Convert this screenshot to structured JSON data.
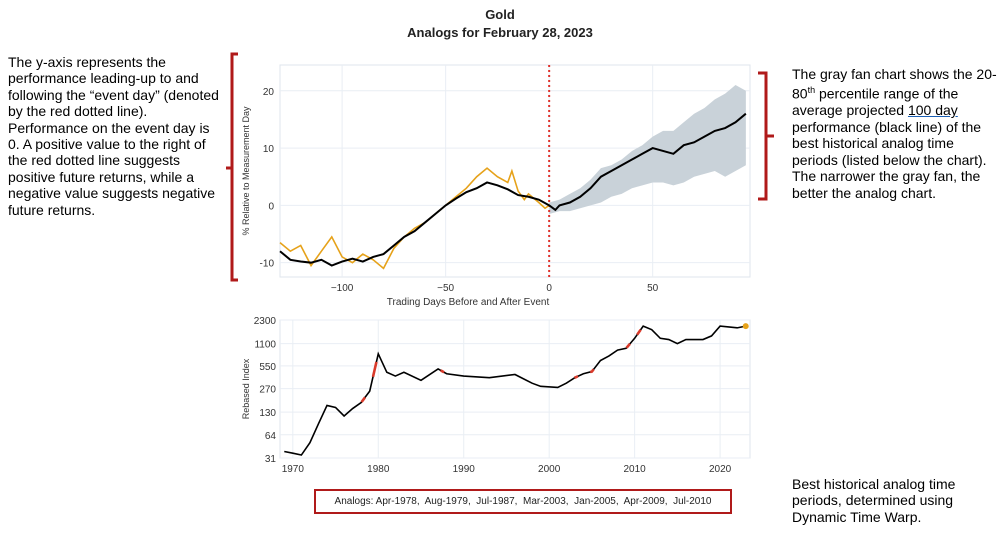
{
  "header": {
    "title": "Gold",
    "subtitle": "Analogs for February 28, 2023"
  },
  "notes": {
    "left": "The y-axis represents the performance leading-up to and following the “event day” (denoted by the red dotted line). Performance on the event day is 0. A positive value to the right of the red dotted line suggests positive future returns, while a negative value suggests negative future returns.",
    "right_part1": "The gray fan chart shows the 20-80",
    "right_sup": "th",
    "right_part2": " percentile range of the average projected ",
    "right_link": "100 day",
    "right_part3": " performance (black line) of the best historical analog time periods (listed below the chart). The narrower the gray fan, the better the analog chart.",
    "bottom_right": "Best historical analog time periods, determined using Dynamic Time Warp."
  },
  "analogs_label": "Analogs:",
  "analogs": [
    "Apr-1978",
    "Aug-1979",
    "Jul-1987",
    "Mar-2003",
    "Jan-2005",
    "Apr-2009",
    "Jul-2010"
  ],
  "colors": {
    "bracket": "#b01a1a",
    "event_line": "#e0302a",
    "fan": "#c9d2d9",
    "analog_line": "#000000",
    "gold_line": "#e6a21a",
    "highlight": "#d93a2b",
    "grid": "#e9eef4"
  },
  "chart_data": [
    {
      "type": "line",
      "ylabel": "% Relative to Measurement Day",
      "xlabel": "Trading Days Before and After Event",
      "xlim": [
        -130,
        97
      ],
      "ylim": [
        -12.5,
        24.5
      ],
      "xticks": [
        -100,
        -50,
        0,
        50
      ],
      "yticks": [
        -10,
        0,
        10,
        20
      ],
      "grid": true,
      "event_day": 0,
      "series": [
        {
          "role": "gold (actual)",
          "x": [
            -130,
            -125,
            -120,
            -115,
            -110,
            -105,
            -100,
            -95,
            -90,
            -85,
            -80,
            -75,
            -70,
            -65,
            -60,
            -55,
            -50,
            -45,
            -40,
            -35,
            -30,
            -25,
            -20,
            -18,
            -15,
            -12,
            -10,
            -5,
            -2,
            0
          ],
          "y": [
            -6.5,
            -8,
            -7,
            -10.5,
            -8,
            -5.5,
            -9,
            -10,
            -8.5,
            -9.5,
            -11,
            -7.5,
            -5.5,
            -4,
            -3,
            -1.5,
            0,
            1.5,
            3,
            5,
            6.5,
            5,
            4,
            6,
            2.5,
            1,
            2,
            0.5,
            -0.5,
            0
          ]
        },
        {
          "role": "analog average",
          "x": [
            -130,
            -125,
            -120,
            -115,
            -110,
            -105,
            -100,
            -95,
            -90,
            -85,
            -80,
            -75,
            -70,
            -65,
            -60,
            -55,
            -50,
            -45,
            -40,
            -35,
            -30,
            -25,
            -20,
            -15,
            -10,
            -5,
            0,
            3,
            5,
            10,
            15,
            20,
            25,
            30,
            35,
            40,
            45,
            50,
            55,
            60,
            65,
            70,
            75,
            80,
            85,
            90,
            95
          ],
          "y": [
            -8,
            -9.5,
            -9.8,
            -10,
            -9.5,
            -10.5,
            -9.8,
            -9.3,
            -9.8,
            -9,
            -8.5,
            -7,
            -5.5,
            -4.5,
            -3,
            -1.5,
            0,
            1.2,
            2.3,
            3,
            4,
            3.5,
            2.8,
            1.8,
            1.5,
            1,
            0,
            -0.8,
            0,
            0.5,
            1.5,
            3,
            5,
            6,
            7,
            8,
            9,
            10,
            9.5,
            9,
            10.5,
            11,
            12,
            13,
            13.5,
            14.5,
            16
          ]
        }
      ],
      "band_20_80": {
        "x": [
          0,
          5,
          10,
          15,
          20,
          25,
          30,
          35,
          40,
          45,
          50,
          55,
          60,
          65,
          70,
          75,
          80,
          85,
          90,
          95
        ],
        "lower": [
          -1.5,
          -1,
          -1,
          -0.5,
          0,
          0.5,
          1.5,
          2,
          3,
          3.5,
          4,
          4,
          3.5,
          4,
          5,
          5.5,
          6,
          5,
          6,
          7
        ],
        "upper": [
          0.5,
          1,
          2,
          3,
          4.5,
          6.5,
          7,
          8,
          9.5,
          10.5,
          12,
          13,
          13,
          14.5,
          16,
          17,
          18.5,
          19.5,
          21,
          20
        ]
      }
    },
    {
      "type": "line",
      "ylabel": "Rebased Index",
      "log_scale": true,
      "xlim": [
        1968.5,
        2023.5
      ],
      "ylim": [
        31,
        2300
      ],
      "xticks": [
        1970,
        1980,
        1990,
        2000,
        2010,
        2020
      ],
      "ytick_labels": [
        "2300",
        "1100",
        "550",
        "270",
        "130",
        "64",
        "31"
      ],
      "ytick_values": [
        2300,
        1100,
        550,
        270,
        130,
        64,
        31
      ],
      "series": [
        {
          "role": "gold history",
          "x": [
            1969,
            1970,
            1971,
            1972,
            1973,
            1974,
            1975,
            1976,
            1977,
            1978,
            1979,
            1980,
            1980.5,
            1981,
            1982,
            1983,
            1985,
            1987,
            1988,
            1990,
            1993,
            1996,
            1998,
            1999,
            2001,
            2002,
            2003,
            2004,
            2005,
            2006,
            2007,
            2008,
            2009,
            2010,
            2011,
            2012,
            2013,
            2014,
            2015,
            2016,
            2018,
            2019,
            2020,
            2021,
            2022,
            2023
          ],
          "y": [
            38,
            36,
            34,
            50,
            90,
            160,
            150,
            115,
            145,
            175,
            250,
            800,
            600,
            450,
            400,
            450,
            350,
            500,
            430,
            400,
            380,
            420,
            320,
            290,
            280,
            320,
            380,
            430,
            460,
            650,
            750,
            900,
            950,
            1300,
            1900,
            1700,
            1300,
            1250,
            1100,
            1250,
            1250,
            1400,
            1900,
            1850,
            1800,
            1900
          ]
        }
      ],
      "highlighted_periods": [
        "Apr-1978",
        "Aug-1979",
        "Jul-1987",
        "Mar-2003",
        "Jan-2005",
        "Apr-2009",
        "Jul-2010"
      ]
    }
  ]
}
